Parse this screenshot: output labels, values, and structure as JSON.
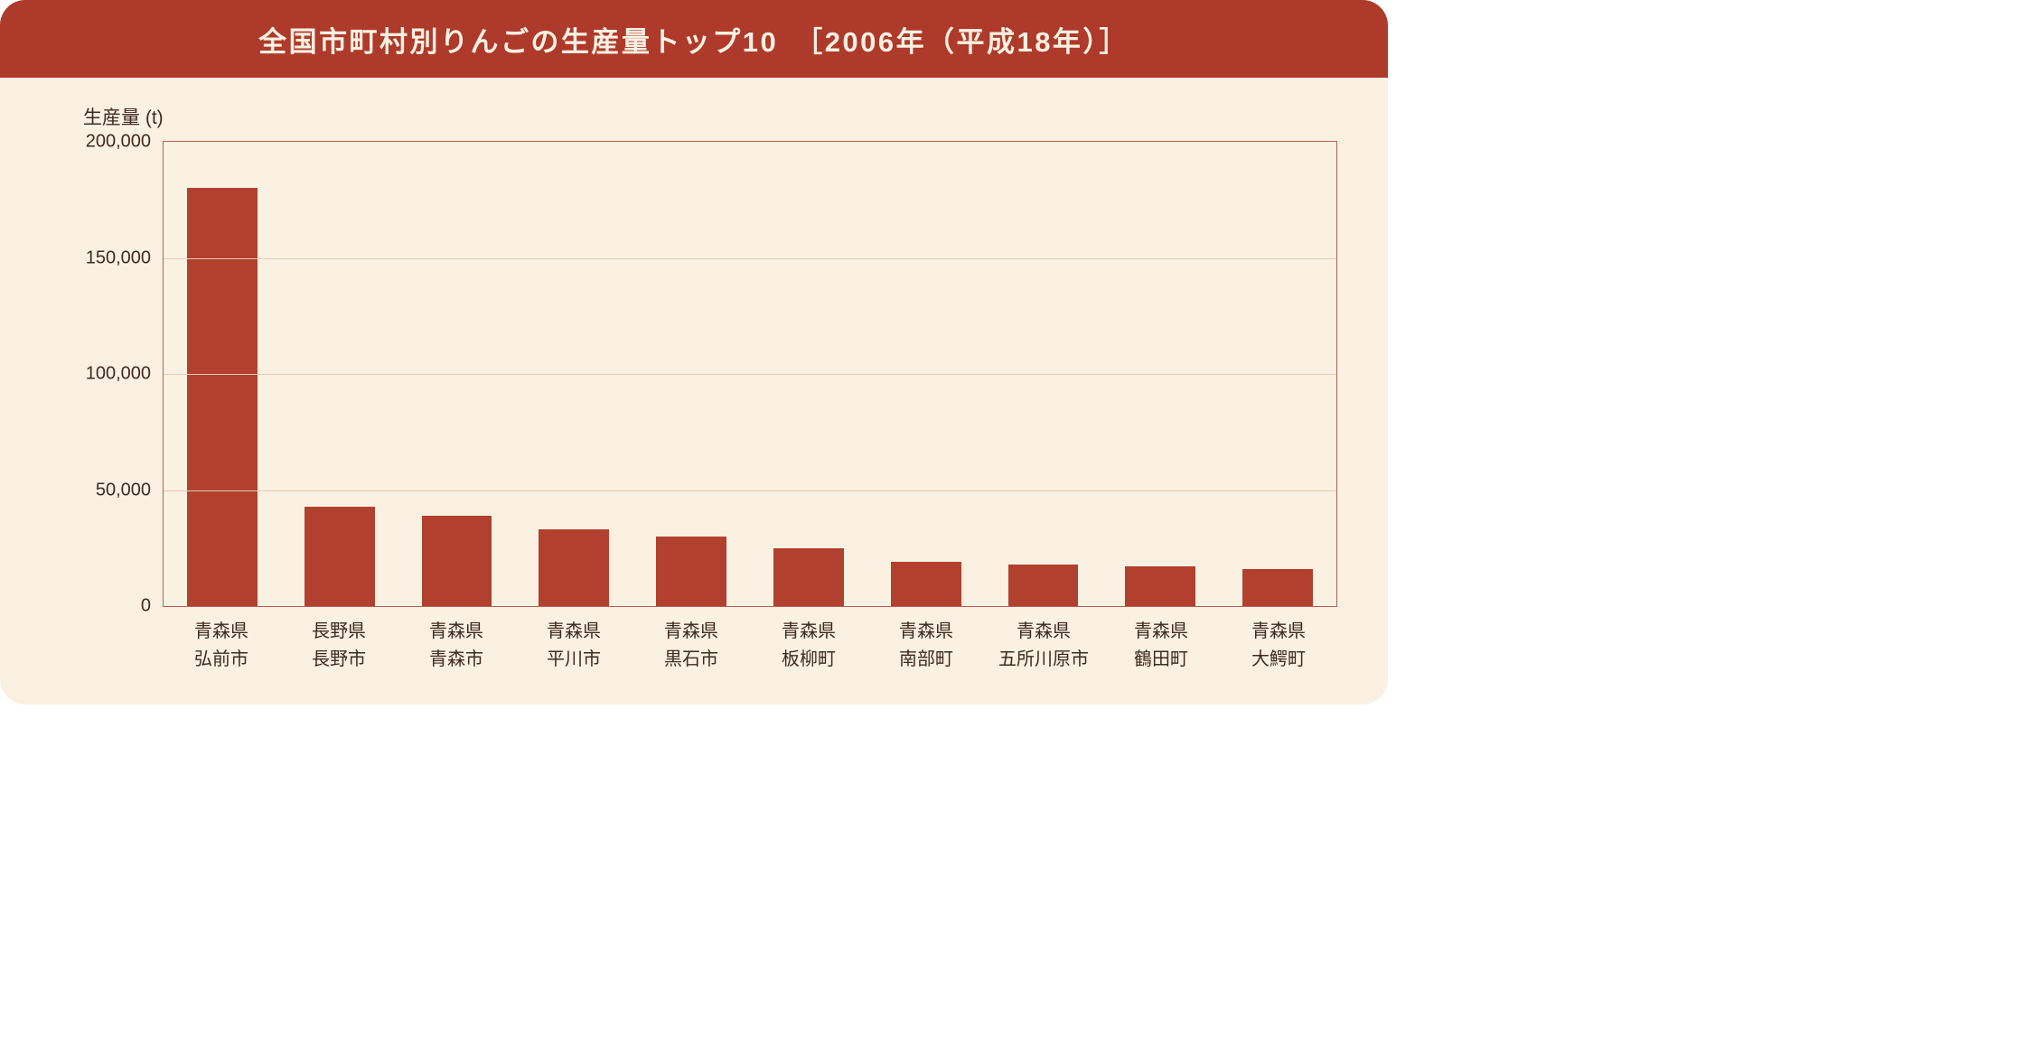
{
  "header": {
    "title": "全国市町村別りんごの生産量トップ10　［2006年（平成18年）］"
  },
  "chart": {
    "type": "bar",
    "ylabel": "生産量 (t)",
    "bar_color": "#b2402e",
    "background_color": "#fbf1e2",
    "header_color": "#ad3a2b",
    "header_text_color": "#fbf1e2",
    "axis_color": "#b06056",
    "grid_color": "#e9c9b4",
    "text_color": "#3d2b1f",
    "ylim": [
      0,
      200000
    ],
    "ytick_step": 50000,
    "yticks": [
      {
        "value": 0,
        "label": "0"
      },
      {
        "value": 50000,
        "label": "50,000"
      },
      {
        "value": 100000,
        "label": "100,000"
      },
      {
        "value": 150000,
        "label": "150,000"
      },
      {
        "value": 200000,
        "label": "200,000"
      }
    ],
    "bar_width_ratio": 0.6,
    "title_fontsize": 31,
    "label_fontsize": 20,
    "categories": [
      {
        "prefecture": "青森県",
        "city": "弘前市",
        "value": 180000
      },
      {
        "prefecture": "長野県",
        "city": "長野市",
        "value": 43000
      },
      {
        "prefecture": "青森県",
        "city": "青森市",
        "value": 39000
      },
      {
        "prefecture": "青森県",
        "city": "平川市",
        "value": 33000
      },
      {
        "prefecture": "青森県",
        "city": "黒石市",
        "value": 30000
      },
      {
        "prefecture": "青森県",
        "city": "板柳町",
        "value": 25000
      },
      {
        "prefecture": "青森県",
        "city": "南部町",
        "value": 19000
      },
      {
        "prefecture": "青森県",
        "city": "五所川原市",
        "value": 18000
      },
      {
        "prefecture": "青森県",
        "city": "鶴田町",
        "value": 17000
      },
      {
        "prefecture": "青森県",
        "city": "大鰐町",
        "value": 16000
      }
    ]
  }
}
